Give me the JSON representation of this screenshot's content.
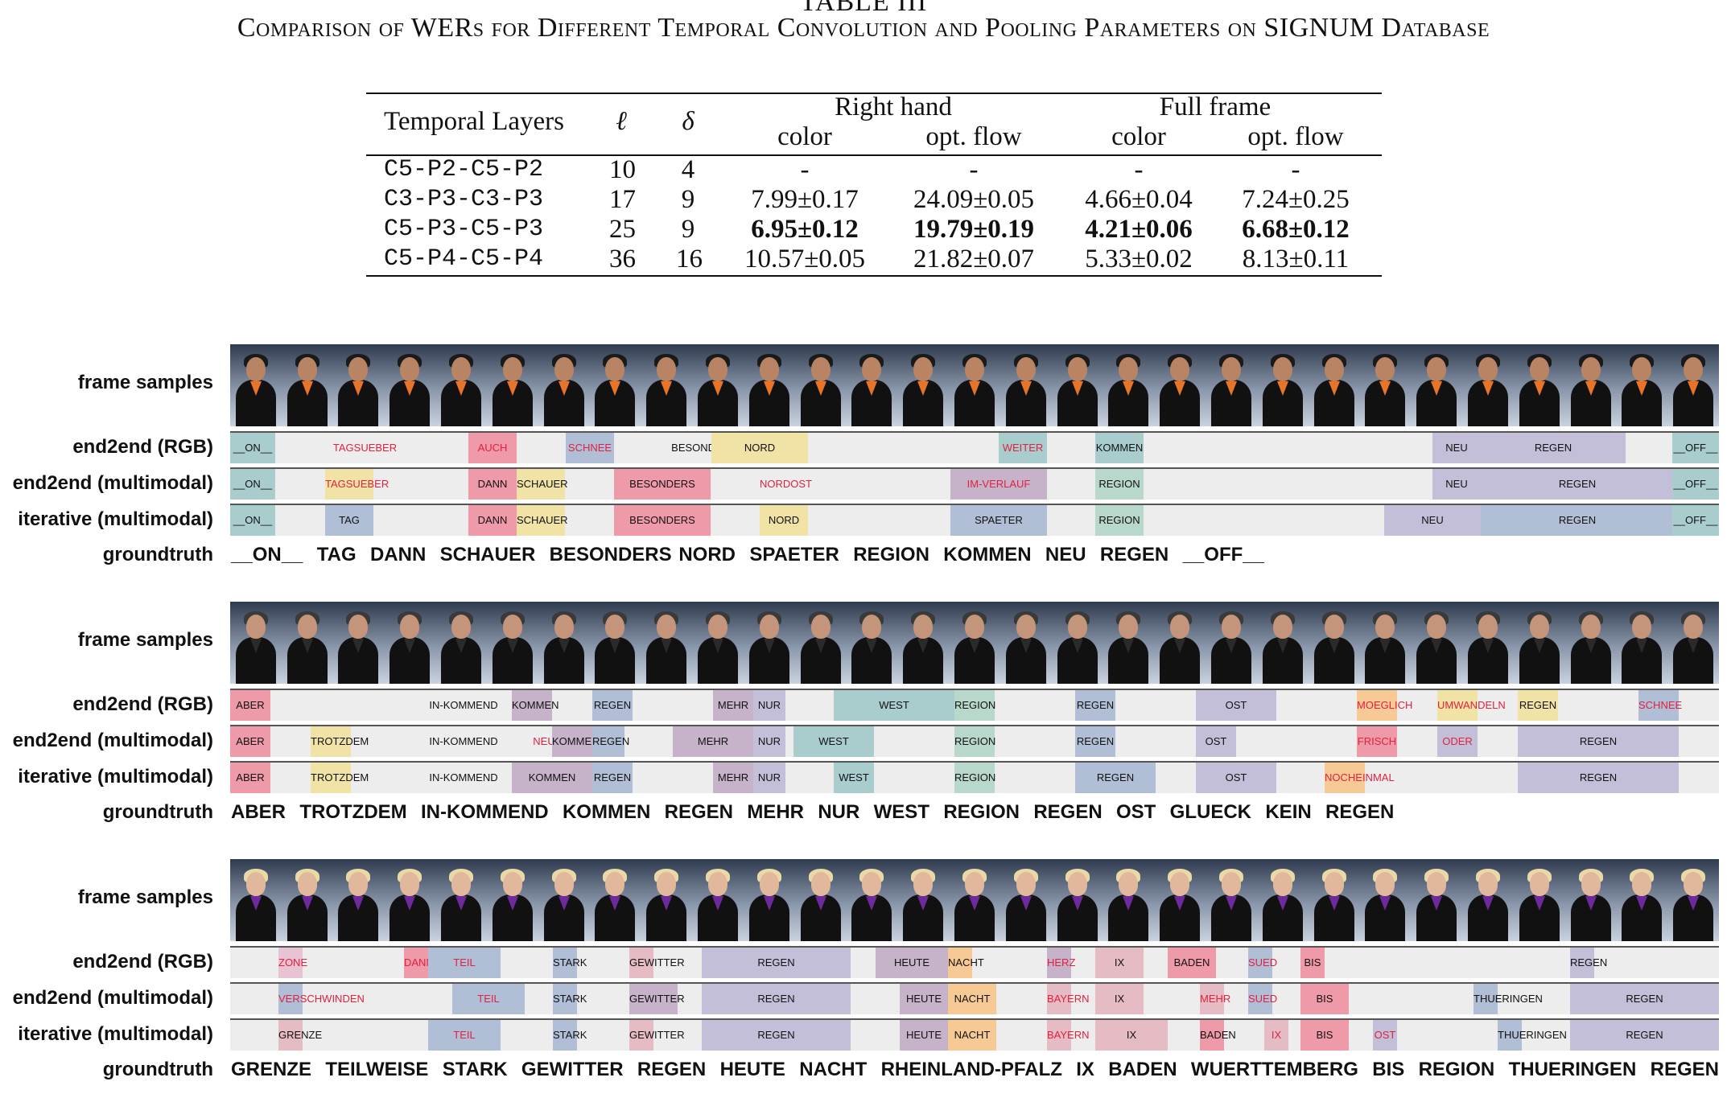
{
  "caption": {
    "label": "TABLE III",
    "title": "Comparison of WERs for Different Temporal Convolution and Pooling Parameters on SIGNUM Database"
  },
  "table": {
    "header": {
      "layers": "Temporal Layers",
      "l": "ℓ",
      "d": "δ",
      "group1": "Right hand",
      "group2": "Full frame",
      "sub": [
        "color",
        "opt. flow",
        "color",
        "opt. flow"
      ]
    },
    "rows": [
      {
        "layers": "C5-P2-C5-P2",
        "l": "10",
        "d": "4",
        "vals": [
          "-",
          "-",
          "-",
          "-"
        ],
        "bold": false
      },
      {
        "layers": "C3-P3-C3-P3",
        "l": "17",
        "d": "9",
        "vals": [
          "7.99±0.17",
          "24.09±0.05",
          "4.66±0.04",
          "7.24±0.25"
        ],
        "bold": false
      },
      {
        "layers": "C5-P3-C5-P3",
        "l": "25",
        "d": "9",
        "vals": [
          "6.95±0.12",
          "19.79±0.19",
          "4.21±0.06",
          "6.68±0.12"
        ],
        "bold": true
      },
      {
        "layers": "C5-P4-C5-P4",
        "l": "36",
        "d": "16",
        "vals": [
          "10.57±0.05",
          "21.82±0.07",
          "5.33±0.02",
          "8.13±0.11"
        ],
        "bold": false
      }
    ]
  },
  "labels": {
    "frames": "frame samples",
    "rgb": "end2end (RGB)",
    "e2e_multi": "end2end (multimodal)",
    "iter_multi": "iterative (multimodal)",
    "groundtruth": "groundtruth"
  },
  "colors": {
    "teal": "#a9cdcd",
    "red": "#ef9aa8",
    "blue": "#b0bfd6",
    "yellow": "#f1e2a6",
    "orange": "#f7c995",
    "mauve": "#c7b3c9",
    "pink": "#e7c3d3",
    "lilac": "#c4bfd8",
    "green": "#b8d8cc",
    "rose": "#e6bcc4",
    "errortext": "#e0213f"
  },
  "panels": [
    {
      "person": {
        "hair": "#1a1a1a",
        "skin": "#b98464",
        "collar": "#e8742a"
      },
      "rows": [
        [
          {
            "s": 0,
            "w": 56,
            "t": "__ON__",
            "c": "teal"
          },
          {
            "s": 110,
            "w": 115,
            "t": "TAGSUEBER",
            "c": "",
            "err": true
          },
          {
            "s": 296,
            "w": 60,
            "t": "AUCH",
            "c": "red",
            "err": true
          },
          {
            "s": 417,
            "w": 60,
            "t": "SCHNEE",
            "c": "blue",
            "err": true
          },
          {
            "s": 530,
            "w": 118,
            "t": "BESONDERS",
            "c": ""
          },
          {
            "s": 598,
            "w": 120,
            "t": "NORD",
            "c": "yellow"
          },
          {
            "s": 955,
            "w": 60,
            "t": "WEITER",
            "c": "teal",
            "err": true
          },
          {
            "s": 1075,
            "w": 60,
            "t": "KOMMEN",
            "c": "teal"
          },
          {
            "s": 1494,
            "w": 60,
            "t": "NEU",
            "c": "lilac"
          },
          {
            "s": 1554,
            "w": 180,
            "t": "REGEN",
            "c": "lilac"
          },
          {
            "s": 1792,
            "w": 58,
            "t": "__OFF__",
            "c": "teal"
          }
        ],
        [
          {
            "s": 0,
            "w": 56,
            "t": "__ON__",
            "c": "teal"
          },
          {
            "s": 118,
            "w": 60,
            "t": "TAGSUEBER",
            "c": "yellow",
            "err": true
          },
          {
            "s": 296,
            "w": 60,
            "t": "DANN",
            "c": "red"
          },
          {
            "s": 356,
            "w": 60,
            "t": "SCHAUER",
            "c": "yellow"
          },
          {
            "s": 477,
            "w": 120,
            "t": "BESONDERS",
            "c": "red"
          },
          {
            "s": 658,
            "w": 60,
            "t": "NORDOST",
            "c": "",
            "err": true
          },
          {
            "s": 895,
            "w": 120,
            "t": "IM-VERLAUF",
            "c": "mauve",
            "err": true
          },
          {
            "s": 1075,
            "w": 60,
            "t": "REGION",
            "c": "green"
          },
          {
            "s": 1494,
            "w": 60,
            "t": "NEU",
            "c": "lilac"
          },
          {
            "s": 1554,
            "w": 240,
            "t": "REGEN",
            "c": "lilac"
          },
          {
            "s": 1792,
            "w": 58,
            "t": "__OFF__",
            "c": "teal"
          }
        ],
        [
          {
            "s": 0,
            "w": 56,
            "t": "__ON__",
            "c": "teal"
          },
          {
            "s": 118,
            "w": 60,
            "t": "TAG",
            "c": "blue"
          },
          {
            "s": 296,
            "w": 60,
            "t": "DANN",
            "c": "red"
          },
          {
            "s": 356,
            "w": 60,
            "t": "SCHAUER",
            "c": "yellow"
          },
          {
            "s": 477,
            "w": 120,
            "t": "BESONDERS",
            "c": "red"
          },
          {
            "s": 658,
            "w": 60,
            "t": "NORD",
            "c": "yellow"
          },
          {
            "s": 895,
            "w": 120,
            "t": "SPAETER",
            "c": "blue"
          },
          {
            "s": 1075,
            "w": 60,
            "t": "REGION",
            "c": "green"
          },
          {
            "s": 1434,
            "w": 120,
            "t": "NEU",
            "c": "lilac"
          },
          {
            "s": 1554,
            "w": 240,
            "t": "REGEN",
            "c": "blue"
          },
          {
            "s": 1792,
            "w": 58,
            "t": "__OFF__",
            "c": "teal"
          }
        ]
      ],
      "groundtruth": "__ON__  TAG  DANN  SCHAUER  BESONDERS NORD  SPAETER  REGION  KOMMEN  NEU  REGEN  __OFF__"
    },
    {
      "person": {
        "hair": "#3a3a3a",
        "skin": "#c4957a",
        "collar": "#2a2a2a"
      },
      "rows": [
        [
          {
            "s": 0,
            "w": 50,
            "t": "ABER",
            "c": "red"
          },
          {
            "s": 230,
            "w": 120,
            "t": "IN-KOMMEND",
            "c": ""
          },
          {
            "s": 350,
            "w": 50,
            "t": "KOMMEN",
            "c": "mauve"
          },
          {
            "s": 450,
            "w": 50,
            "t": "REGEN",
            "c": "blue"
          },
          {
            "s": 600,
            "w": 50,
            "t": "MEHR",
            "c": "mauve"
          },
          {
            "s": 650,
            "w": 40,
            "t": "NUR",
            "c": "lilac"
          },
          {
            "s": 750,
            "w": 150,
            "t": "WEST",
            "c": "teal"
          },
          {
            "s": 900,
            "w": 50,
            "t": "REGION",
            "c": "green"
          },
          {
            "s": 1050,
            "w": 50,
            "t": "REGEN",
            "c": "blue"
          },
          {
            "s": 1200,
            "w": 100,
            "t": "OST",
            "c": "lilac"
          },
          {
            "s": 1400,
            "w": 50,
            "t": "MOEGLICH",
            "c": "orange",
            "err": true
          },
          {
            "s": 1500,
            "w": 50,
            "t": "UMWANDELN",
            "c": "yellow",
            "err": true
          },
          {
            "s": 1600,
            "w": 50,
            "t": "REGEN",
            "c": "yellow"
          },
          {
            "s": 1750,
            "w": 50,
            "t": "SCHNEE",
            "c": "blue",
            "err": true
          }
        ],
        [
          {
            "s": 0,
            "w": 50,
            "t": "ABER",
            "c": "red"
          },
          {
            "s": 100,
            "w": 50,
            "t": "TROTZDEM",
            "c": "yellow"
          },
          {
            "s": 230,
            "w": 120,
            "t": "IN-KOMMEND",
            "c": ""
          },
          {
            "s": 370,
            "w": 40,
            "t": "NEU",
            "c": "",
            "err": true
          },
          {
            "s": 400,
            "w": 50,
            "t": "KOMMEN",
            "c": "mauve"
          },
          {
            "s": 450,
            "w": 40,
            "t": "REGEN",
            "c": "blue"
          },
          {
            "s": 550,
            "w": 100,
            "t": "MEHR",
            "c": "mauve"
          },
          {
            "s": 650,
            "w": 40,
            "t": "NUR",
            "c": "lilac"
          },
          {
            "s": 700,
            "w": 100,
            "t": "WEST",
            "c": "teal"
          },
          {
            "s": 900,
            "w": 50,
            "t": "REGION",
            "c": "green"
          },
          {
            "s": 1050,
            "w": 50,
            "t": "REGEN",
            "c": "blue"
          },
          {
            "s": 1200,
            "w": 50,
            "t": "OST",
            "c": "lilac"
          },
          {
            "s": 1400,
            "w": 50,
            "t": "FRISCH",
            "c": "red",
            "err": true
          },
          {
            "s": 1500,
            "w": 50,
            "t": "ODER",
            "c": "lilac",
            "err": true
          },
          {
            "s": 1600,
            "w": 200,
            "t": "REGEN",
            "c": "lilac"
          }
        ],
        [
          {
            "s": 0,
            "w": 50,
            "t": "ABER",
            "c": "red"
          },
          {
            "s": 100,
            "w": 50,
            "t": "TROTZDEM",
            "c": "yellow"
          },
          {
            "s": 230,
            "w": 120,
            "t": "IN-KOMMEND",
            "c": ""
          },
          {
            "s": 350,
            "w": 100,
            "t": "KOMMEN",
            "c": "mauve"
          },
          {
            "s": 450,
            "w": 50,
            "t": "REGEN",
            "c": "blue"
          },
          {
            "s": 600,
            "w": 50,
            "t": "MEHR",
            "c": "mauve"
          },
          {
            "s": 650,
            "w": 40,
            "t": "NUR",
            "c": "lilac"
          },
          {
            "s": 750,
            "w": 50,
            "t": "WEST",
            "c": "teal"
          },
          {
            "s": 900,
            "w": 50,
            "t": "REGION",
            "c": "green"
          },
          {
            "s": 1050,
            "w": 100,
            "t": "REGEN",
            "c": "blue"
          },
          {
            "s": 1200,
            "w": 100,
            "t": "OST",
            "c": "lilac"
          },
          {
            "s": 1360,
            "w": 50,
            "t": "NOCHEINMAL",
            "c": "orange",
            "err": true
          },
          {
            "s": 1600,
            "w": 200,
            "t": "REGEN",
            "c": "lilac"
          }
        ]
      ],
      "groundtruth": "ABER  TROTZDEM  IN-KOMMEND  KOMMEN  REGEN  MEHR  NUR  WEST  REGION  REGEN  OST  GLUECK  KEIN  REGEN"
    },
    {
      "person": {
        "hair": "#e9d9a7",
        "skin": "#e1b89c",
        "collar": "#6d2a9c"
      },
      "rows": [
        [
          {
            "s": 60,
            "w": 30,
            "t": "ZONE",
            "c": "pink",
            "err": true
          },
          {
            "s": 216,
            "w": 30,
            "t": "DANN",
            "c": "red",
            "err": true
          },
          {
            "s": 246,
            "w": 90,
            "t": "TEIL",
            "c": "blue",
            "err": true
          },
          {
            "s": 401,
            "w": 30,
            "t": "STARK",
            "c": "blue"
          },
          {
            "s": 496,
            "w": 30,
            "t": "GEWITTER",
            "c": "rose"
          },
          {
            "s": 586,
            "w": 185,
            "t": "REGEN",
            "c": "lilac"
          },
          {
            "s": 802,
            "w": 90,
            "t": "HEUTE",
            "c": "mauve"
          },
          {
            "s": 892,
            "w": 30,
            "t": "NACHT",
            "c": "orange"
          },
          {
            "s": 1015,
            "w": 30,
            "t": "HERZ",
            "c": "mauve",
            "err": true
          },
          {
            "s": 1075,
            "w": 60,
            "t": "IX",
            "c": "rose"
          },
          {
            "s": 1165,
            "w": 60,
            "t": "BADEN",
            "c": "red"
          },
          {
            "s": 1265,
            "w": 30,
            "t": "SUED",
            "c": "blue",
            "err": true
          },
          {
            "s": 1330,
            "w": 30,
            "t": "BIS",
            "c": "red"
          },
          {
            "s": 1665,
            "w": 30,
            "t": "REGEN",
            "c": "lilac"
          }
        ],
        [
          {
            "s": 60,
            "w": 30,
            "t": "VERSCHWINDEN",
            "c": "blue",
            "err": true
          },
          {
            "s": 276,
            "w": 90,
            "t": "TEIL",
            "c": "blue",
            "err": true
          },
          {
            "s": 401,
            "w": 30,
            "t": "STARK",
            "c": "blue"
          },
          {
            "s": 496,
            "w": 60,
            "t": "GEWITTER",
            "c": "mauve"
          },
          {
            "s": 586,
            "w": 185,
            "t": "REGEN",
            "c": "lilac"
          },
          {
            "s": 832,
            "w": 60,
            "t": "HEUTE",
            "c": "mauve"
          },
          {
            "s": 892,
            "w": 60,
            "t": "NACHT",
            "c": "orange"
          },
          {
            "s": 1015,
            "w": 30,
            "t": "BAYERN",
            "c": "rose",
            "err": true
          },
          {
            "s": 1075,
            "w": 60,
            "t": "IX",
            "c": "rose"
          },
          {
            "s": 1205,
            "w": 30,
            "t": "MEHR",
            "c": "rose",
            "err": true
          },
          {
            "s": 1265,
            "w": 30,
            "t": "SUED",
            "c": "blue",
            "err": true
          },
          {
            "s": 1330,
            "w": 60,
            "t": "BIS",
            "c": "red"
          },
          {
            "s": 1545,
            "w": 30,
            "t": "THUERINGEN",
            "c": "blue"
          },
          {
            "s": 1665,
            "w": 185,
            "t": "REGEN",
            "c": "lilac"
          }
        ],
        [
          {
            "s": 60,
            "w": 30,
            "t": "GRENZE",
            "c": "rose"
          },
          {
            "s": 246,
            "w": 90,
            "t": "TEIL",
            "c": "blue",
            "err": true
          },
          {
            "s": 401,
            "w": 30,
            "t": "STARK",
            "c": "blue"
          },
          {
            "s": 496,
            "w": 30,
            "t": "GEWITTER",
            "c": "rose"
          },
          {
            "s": 586,
            "w": 185,
            "t": "REGEN",
            "c": "lilac"
          },
          {
            "s": 832,
            "w": 60,
            "t": "HEUTE",
            "c": "mauve"
          },
          {
            "s": 892,
            "w": 60,
            "t": "NACHT",
            "c": "orange"
          },
          {
            "s": 1015,
            "w": 30,
            "t": "BAYERN",
            "c": "rose",
            "err": true
          },
          {
            "s": 1075,
            "w": 90,
            "t": "IX",
            "c": "rose"
          },
          {
            "s": 1205,
            "w": 30,
            "t": "BADEN",
            "c": "red"
          },
          {
            "s": 1285,
            "w": 30,
            "t": "IX",
            "c": "rose",
            "err": true
          },
          {
            "s": 1330,
            "w": 60,
            "t": "BIS",
            "c": "red"
          },
          {
            "s": 1420,
            "w": 30,
            "t": "OST",
            "c": "lilac",
            "err": true
          },
          {
            "s": 1575,
            "w": 30,
            "t": "THUERINGEN",
            "c": "blue"
          },
          {
            "s": 1665,
            "w": 185,
            "t": "REGEN",
            "c": "lilac"
          }
        ]
      ],
      "groundtruth": "GRENZE  TEILWEISE  STARK  GEWITTER  REGEN  HEUTE  NACHT  RHEINLAND-PFALZ  IX  BADEN  WUERTTEMBERG  BIS  REGION  THUERINGEN  REGEN"
    }
  ]
}
